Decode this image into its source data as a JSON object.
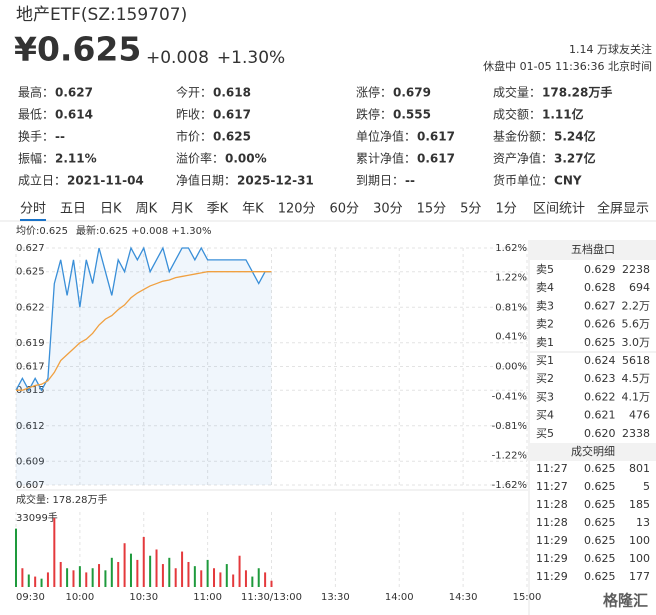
{
  "header": {
    "name": "地产ETF(SZ:159707)",
    "price": "¥0.625",
    "change": "+0.008",
    "change_pct": "+1.30%",
    "followers": "1.14 万球友关注",
    "status": "休盘中 01-05 11:36:36 北京时间"
  },
  "stats": [
    [
      {
        "label": "最高：",
        "value": "0.627",
        "color": "#e4393c"
      },
      {
        "label": "今开：",
        "value": "0.618",
        "color": "#e4393c"
      },
      {
        "label": "涨停：",
        "value": "0.679",
        "color": "#e4393c"
      },
      {
        "label": "成交量：",
        "value": "178.28万手"
      }
    ],
    [
      {
        "label": "最低：",
        "value": "0.614",
        "color": "#1e9a3c"
      },
      {
        "label": "昨收：",
        "value": "0.617"
      },
      {
        "label": "跌停：",
        "value": "0.555",
        "color": "#1e9a3c"
      },
      {
        "label": "成交额：",
        "value": "1.11亿"
      }
    ],
    [
      {
        "label": "换手：",
        "value": "--"
      },
      {
        "label": "市价：",
        "value": "0.625"
      },
      {
        "label": "单位净值：",
        "value": "0.617"
      },
      {
        "label": "基金份额：",
        "value": "5.24亿"
      }
    ],
    [
      {
        "label": "振幅：",
        "value": "2.11%"
      },
      {
        "label": "溢价率：",
        "value": "0.00%"
      },
      {
        "label": "累计净值：",
        "value": "0.617"
      },
      {
        "label": "资产净值：",
        "value": "3.27亿"
      }
    ],
    [
      {
        "label": "成立日：",
        "value": "2021-11-04"
      },
      {
        "label": "净值日期：",
        "value": "2025-12-31"
      },
      {
        "label": "到期日：",
        "value": "--"
      },
      {
        "label": "货币单位：",
        "value": "CNY"
      }
    ]
  ],
  "tabs": {
    "items": [
      "分时",
      "五日",
      "日K",
      "周K",
      "月K",
      "季K",
      "年K",
      "120分",
      "60分",
      "30分",
      "15分",
      "5分",
      "1分"
    ],
    "actions": [
      "区间统计",
      "全屏显示"
    ]
  },
  "chart_data": [
    {
      "type": "line",
      "annotations": [
        "均价:0.625",
        "最新:0.625 +0.008 +1.30%"
      ],
      "x": [
        0,
        3,
        6,
        9,
        12,
        15,
        18,
        21,
        24,
        27,
        30,
        33,
        36,
        39,
        42,
        45,
        48,
        51,
        54,
        57,
        60,
        63,
        66,
        69,
        72,
        75,
        78,
        81,
        84,
        87,
        90,
        93,
        96,
        99,
        102,
        105,
        108,
        111,
        114,
        117,
        120
      ],
      "xlim": [
        0,
        240
      ],
      "ylim": [
        0.607,
        0.627
      ],
      "yticks": [
        0.627,
        0.625,
        0.622,
        0.619,
        0.617,
        0.615,
        0.612,
        0.609,
        0.607
      ],
      "y2lim": [
        -1.62,
        1.62
      ],
      "y2ticks": [
        {
          "value": 1.62,
          "label": "1.62%"
        },
        {
          "value": 1.22,
          "label": "1.22%"
        },
        {
          "value": 0.81,
          "label": "0.81%"
        },
        {
          "value": 0.41,
          "label": "0.41%"
        },
        {
          "value": 0,
          "label": "0.00%"
        },
        {
          "value": -0.41,
          "label": "-0.41%"
        },
        {
          "value": -0.81,
          "label": "-0.81%"
        },
        {
          "value": -1.22,
          "label": "-1.22%"
        },
        {
          "value": -1.62,
          "label": "-1.62%"
        }
      ],
      "grid": true,
      "series": [
        {
          "color": "#3a8fd8",
          "values": [
            0.615,
            0.616,
            0.615,
            0.616,
            0.615,
            0.616,
            0.624,
            0.626,
            0.623,
            0.626,
            0.622,
            0.626,
            0.624,
            0.627,
            0.625,
            0.623,
            0.626,
            0.625,
            0.627,
            0.626,
            0.627,
            0.625,
            0.626,
            0.627,
            0.625,
            0.626,
            0.627,
            0.627,
            0.626,
            0.627,
            0.626,
            0.626,
            0.626,
            0.626,
            0.626,
            0.626,
            0.626,
            0.625,
            0.624,
            0.625,
            0.625
          ]
        },
        {
          "color": "#f0a040",
          "values": [
            0.615,
            0.615,
            0.6152,
            0.6154,
            0.6155,
            0.6158,
            0.6165,
            0.6175,
            0.618,
            0.6185,
            0.619,
            0.6193,
            0.6198,
            0.6205,
            0.621,
            0.6213,
            0.6218,
            0.6222,
            0.6228,
            0.6232,
            0.6235,
            0.6238,
            0.624,
            0.6242,
            0.6243,
            0.6245,
            0.6246,
            0.6247,
            0.6248,
            0.6249,
            0.625,
            0.625,
            0.625,
            0.625,
            0.625,
            0.625,
            0.625,
            0.625,
            0.625,
            0.625,
            0.625
          ]
        }
      ]
    },
    {
      "type": "bar",
      "title": "成交量: 178.28万手",
      "x": [
        0,
        3,
        6,
        9,
        12,
        15,
        18,
        21,
        24,
        27,
        30,
        33,
        36,
        39,
        42,
        45,
        48,
        51,
        54,
        57,
        60,
        63,
        66,
        69,
        72,
        75,
        78,
        81,
        84,
        87,
        90,
        93,
        96,
        99,
        102,
        105,
        108,
        111,
        114,
        117,
        120
      ],
      "values": [
        28000,
        9000,
        6000,
        5000,
        4000,
        7000,
        33099,
        12000,
        9000,
        8000,
        10000,
        7000,
        9000,
        11000,
        8000,
        14000,
        12000,
        21000,
        16000,
        13000,
        24000,
        15000,
        18000,
        11000,
        14000,
        9000,
        17000,
        12000,
        10000,
        8000,
        13000,
        9000,
        7000,
        11000,
        6000,
        15000,
        8000,
        5000,
        9000,
        7000,
        3000
      ],
      "colors": [
        "#1e9a3c",
        "#e4393c",
        "#1e9a3c",
        "#e4393c",
        "#1e9a3c",
        "#e4393c",
        "#e4393c",
        "#e4393c",
        "#1e9a3c",
        "#e4393c",
        "#1e9a3c",
        "#e4393c",
        "#1e9a3c",
        "#e4393c",
        "#1e9a3c",
        "#1e9a3c",
        "#e4393c",
        "#e4393c",
        "#1e9a3c",
        "#e4393c",
        "#e4393c",
        "#1e9a3c",
        "#e4393c",
        "#e4393c",
        "#1e9a3c",
        "#e4393c",
        "#e4393c",
        "#e4393c",
        "#1e9a3c",
        "#e4393c",
        "#1e9a3c",
        "#e4393c",
        "#e4393c",
        "#1e9a3c",
        "#e4393c",
        "#e4393c",
        "#e4393c",
        "#1e9a3c",
        "#1e9a3c",
        "#e4393c",
        "#e4393c"
      ],
      "xlim": [
        0,
        240
      ],
      "xticks": [
        {
          "value": 0,
          "label": "09:30"
        },
        {
          "value": 30,
          "label": "10:00"
        },
        {
          "value": 60,
          "label": "10:30"
        },
        {
          "value": 90,
          "label": "11:00"
        },
        {
          "value": 120,
          "label": "11:30/13:00"
        },
        {
          "value": 150,
          "label": "13:30"
        },
        {
          "value": 180,
          "label": "14:00"
        },
        {
          "value": 210,
          "label": "14:30"
        },
        {
          "value": 240,
          "label": "15:00"
        }
      ],
      "ylim": [
        0,
        33099
      ],
      "yticks": [
        {
          "value": 33099,
          "label": "33099手"
        }
      ]
    }
  ],
  "order_book": {
    "title": "五档盘口",
    "rows": [
      [
        "卖5",
        "0.629",
        "2238"
      ],
      [
        "卖4",
        "0.628",
        "694"
      ],
      [
        "卖3",
        "0.627",
        "2.2万"
      ],
      [
        "卖2",
        "0.626",
        "5.6万"
      ],
      [
        "卖1",
        "0.625",
        "3.0万"
      ],
      [
        "买1",
        "0.624",
        "5618"
      ],
      [
        "买2",
        "0.623",
        "4.5万"
      ],
      [
        "买3",
        "0.622",
        "4.1万"
      ],
      [
        "买4",
        "0.621",
        "476"
      ],
      [
        "买5",
        "0.620",
        "2338"
      ]
    ]
  },
  "trades": {
    "title": "成交明细",
    "rows": [
      [
        "11:27",
        "0.625",
        "801"
      ],
      [
        "11:27",
        "0.625",
        "5"
      ],
      [
        "11:28",
        "0.625",
        "185"
      ],
      [
        "11:28",
        "0.625",
        "13"
      ],
      [
        "11:29",
        "0.625",
        "100"
      ],
      [
        "11:29",
        "0.625",
        "100"
      ],
      [
        "11:29",
        "0.625",
        "177"
      ]
    ]
  },
  "watermark": "格隆汇"
}
